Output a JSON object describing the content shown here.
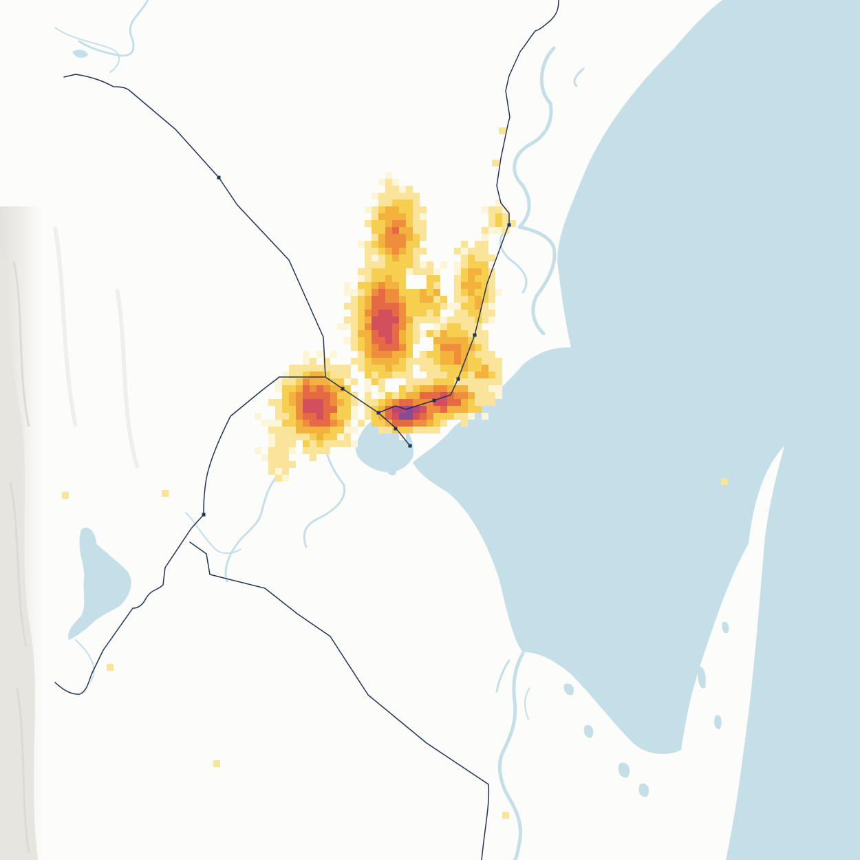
{
  "map": {
    "colors": {
      "land": "#fcfcfa",
      "relief": "#eceae6",
      "water": "#c5dfe9",
      "rail": "#1f3258",
      "station": "#1f3258"
    },
    "density_scale": [
      "#fdf5d8",
      "#f9e49a",
      "#f6cf50",
      "#f3b13e",
      "#ee8d3c",
      "#e46a46",
      "#d44f5d",
      "#b84778",
      "#8a4a94"
    ],
    "layers": [
      "relief-shading",
      "water-bodies",
      "rivers",
      "population-density-grid",
      "railway-lines",
      "railway-stations"
    ]
  }
}
